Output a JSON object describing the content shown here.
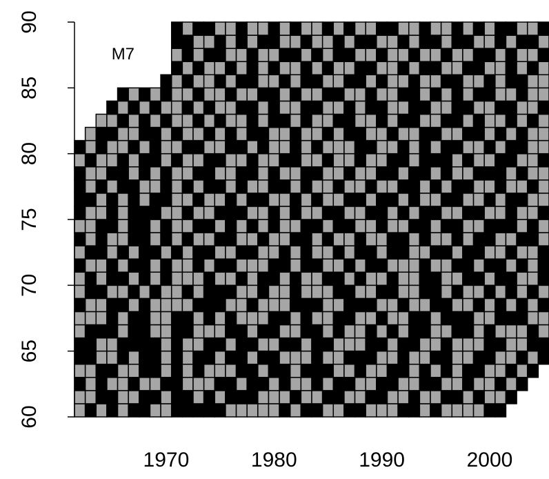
{
  "chart_data": {
    "type": "heatmap",
    "annotation": "M7",
    "annotation_x": 1966,
    "annotation_y": 87.5,
    "colors": {
      "0": "#000000",
      "1": "#a6a6a6"
    },
    "xlim": [
      1961.5,
      2005.5
    ],
    "ylim": [
      60,
      90
    ],
    "xticks": [
      1970,
      1980,
      1990,
      2000
    ],
    "yticks": [
      60,
      65,
      70,
      75,
      80,
      85,
      90
    ],
    "x": [
      1962,
      1963,
      1964,
      1965,
      1966,
      1967,
      1968,
      1969,
      1970,
      1971,
      1972,
      1973,
      1974,
      1975,
      1976,
      1977,
      1978,
      1979,
      1980,
      1981,
      1982,
      1983,
      1984,
      1985,
      1986,
      1987,
      1988,
      1989,
      1990,
      1991,
      1992,
      1993,
      1994,
      1995,
      1996,
      1997,
      1998,
      1999,
      2000,
      2001,
      2002,
      2003,
      2004,
      2005
    ],
    "y": [
      60,
      61,
      62,
      63,
      64,
      65,
      66,
      67,
      68,
      69,
      70,
      71,
      72,
      73,
      74,
      75,
      76,
      77,
      78,
      79,
      80,
      81,
      82,
      83,
      84,
      85,
      86,
      87,
      88,
      89
    ],
    "z": [
      [
        1,
        0,
        1,
        0,
        1,
        0,
        0,
        1,
        1,
        0,
        0,
        0,
        0,
        0,
        1,
        1,
        1,
        1,
        1,
        0,
        1,
        0,
        0,
        1,
        1,
        0,
        0,
        1,
        1,
        1,
        0,
        0,
        1,
        0,
        1,
        1,
        1,
        1,
        0,
        0,
        null,
        null,
        null,
        null
      ],
      [
        1,
        1,
        0,
        0,
        1,
        1,
        0,
        0,
        1,
        0,
        0,
        1,
        0,
        1,
        0,
        0,
        0,
        1,
        1,
        1,
        0,
        1,
        1,
        0,
        0,
        1,
        1,
        0,
        0,
        1,
        1,
        0,
        1,
        1,
        0,
        0,
        1,
        0,
        1,
        1,
        0,
        null,
        null,
        null
      ],
      [
        0,
        1,
        0,
        1,
        1,
        0,
        1,
        1,
        0,
        0,
        1,
        1,
        1,
        0,
        0,
        1,
        0,
        0,
        1,
        0,
        1,
        1,
        0,
        1,
        0,
        0,
        1,
        1,
        0,
        0,
        1,
        1,
        0,
        0,
        1,
        1,
        0,
        1,
        1,
        0,
        1,
        0,
        null,
        null
      ],
      [
        1,
        1,
        0,
        0,
        1,
        1,
        0,
        0,
        1,
        0,
        1,
        0,
        1,
        1,
        1,
        0,
        0,
        1,
        0,
        0,
        1,
        0,
        0,
        0,
        1,
        1,
        0,
        1,
        1,
        0,
        0,
        1,
        0,
        1,
        0,
        1,
        0,
        0,
        1,
        1,
        0,
        1,
        0,
        null
      ],
      [
        0,
        0,
        1,
        1,
        0,
        1,
        0,
        0,
        1,
        0,
        1,
        0,
        0,
        1,
        0,
        0,
        1,
        0,
        0,
        1,
        1,
        1,
        0,
        1,
        1,
        0,
        0,
        0,
        1,
        1,
        0,
        1,
        1,
        0,
        0,
        1,
        1,
        0,
        0,
        1,
        1,
        0,
        1,
        0
      ],
      [
        0,
        0,
        1,
        1,
        0,
        0,
        0,
        0,
        1,
        0,
        1,
        1,
        0,
        0,
        1,
        0,
        0,
        1,
        1,
        0,
        0,
        1,
        0,
        0,
        1,
        1,
        1,
        0,
        0,
        1,
        0,
        0,
        1,
        1,
        0,
        1,
        1,
        1,
        0,
        0,
        1,
        1,
        0,
        0
      ],
      [
        1,
        0,
        0,
        0,
        1,
        0,
        0,
        1,
        1,
        0,
        0,
        1,
        1,
        1,
        0,
        0,
        1,
        0,
        0,
        1,
        1,
        0,
        0,
        1,
        0,
        1,
        1,
        0,
        1,
        0,
        1,
        0,
        0,
        1,
        1,
        0,
        0,
        1,
        0,
        1,
        1,
        1,
        0,
        1
      ],
      [
        1,
        1,
        1,
        0,
        1,
        0,
        0,
        1,
        1,
        0,
        0,
        1,
        0,
        1,
        0,
        1,
        1,
        1,
        0,
        0,
        1,
        0,
        1,
        1,
        0,
        0,
        1,
        1,
        0,
        1,
        1,
        0,
        0,
        1,
        0,
        0,
        0,
        1,
        1,
        0,
        0,
        0,
        1,
        1
      ],
      [
        0,
        1,
        1,
        0,
        0,
        1,
        0,
        1,
        1,
        1,
        1,
        0,
        0,
        0,
        1,
        1,
        0,
        1,
        1,
        1,
        0,
        0,
        0,
        1,
        1,
        0,
        0,
        0,
        1,
        1,
        0,
        1,
        1,
        0,
        0,
        1,
        1,
        0,
        1,
        0,
        1,
        0,
        1,
        0
      ],
      [
        1,
        0,
        0,
        1,
        1,
        0,
        1,
        0,
        1,
        1,
        0,
        1,
        0,
        0,
        0,
        1,
        1,
        0,
        1,
        1,
        0,
        1,
        1,
        1,
        0,
        0,
        1,
        1,
        0,
        0,
        1,
        1,
        0,
        0,
        1,
        0,
        1,
        1,
        0,
        1,
        0,
        1,
        0,
        1
      ],
      [
        1,
        0,
        1,
        0,
        0,
        1,
        0,
        1,
        0,
        1,
        1,
        1,
        0,
        1,
        1,
        0,
        1,
        0,
        0,
        1,
        0,
        1,
        1,
        0,
        0,
        1,
        0,
        1,
        1,
        0,
        1,
        1,
        0,
        0,
        1,
        1,
        0,
        0,
        1,
        0,
        0,
        1,
        1,
        0
      ],
      [
        0,
        1,
        1,
        0,
        1,
        0,
        0,
        1,
        0,
        1,
        1,
        0,
        1,
        0,
        0,
        1,
        1,
        1,
        0,
        0,
        1,
        0,
        0,
        1,
        1,
        0,
        1,
        0,
        0,
        1,
        1,
        1,
        0,
        1,
        1,
        0,
        0,
        1,
        0,
        0,
        1,
        0,
        1,
        0
      ],
      [
        1,
        0,
        0,
        1,
        0,
        1,
        0,
        0,
        1,
        0,
        1,
        0,
        0,
        1,
        1,
        0,
        0,
        1,
        1,
        0,
        1,
        0,
        1,
        1,
        0,
        1,
        0,
        0,
        1,
        0,
        0,
        1,
        1,
        0,
        0,
        1,
        0,
        0,
        1,
        1,
        0,
        1,
        1,
        0
      ],
      [
        0,
        1,
        0,
        1,
        1,
        0,
        0,
        1,
        0,
        1,
        0,
        1,
        1,
        0,
        0,
        1,
        1,
        0,
        1,
        1,
        0,
        0,
        1,
        0,
        1,
        1,
        0,
        1,
        1,
        0,
        0,
        1,
        0,
        1,
        1,
        0,
        1,
        0,
        0,
        1,
        1,
        0,
        0,
        1
      ],
      [
        1,
        1,
        0,
        0,
        1,
        0,
        0,
        1,
        0,
        1,
        1,
        0,
        0,
        1,
        0,
        1,
        0,
        1,
        0,
        1,
        1,
        0,
        0,
        1,
        0,
        0,
        1,
        1,
        0,
        1,
        1,
        0,
        0,
        1,
        0,
        0,
        1,
        1,
        0,
        0,
        0,
        1,
        0,
        1
      ],
      [
        0,
        1,
        1,
        0,
        1,
        0,
        0,
        0,
        1,
        1,
        0,
        1,
        1,
        0,
        0,
        0,
        1,
        1,
        0,
        1,
        0,
        1,
        1,
        0,
        0,
        1,
        1,
        0,
        0,
        1,
        0,
        1,
        0,
        0,
        1,
        1,
        0,
        0,
        1,
        1,
        0,
        1,
        1,
        0
      ],
      [
        0,
        0,
        1,
        0,
        1,
        0,
        1,
        0,
        0,
        1,
        1,
        0,
        1,
        1,
        0,
        1,
        0,
        0,
        1,
        1,
        0,
        1,
        0,
        1,
        1,
        0,
        0,
        1,
        0,
        0,
        1,
        0,
        1,
        1,
        0,
        0,
        1,
        1,
        0,
        1,
        0,
        0,
        1,
        1
      ],
      [
        0,
        1,
        0,
        1,
        0,
        0,
        1,
        1,
        0,
        1,
        0,
        1,
        0,
        0,
        1,
        0,
        1,
        1,
        0,
        0,
        1,
        0,
        1,
        1,
        0,
        1,
        1,
        0,
        1,
        1,
        0,
        0,
        1,
        0,
        1,
        0,
        0,
        1,
        1,
        0,
        1,
        1,
        0,
        1
      ],
      [
        0,
        1,
        1,
        0,
        0,
        1,
        0,
        1,
        0,
        1,
        1,
        0,
        0,
        1,
        1,
        0,
        0,
        1,
        0,
        1,
        1,
        0,
        0,
        1,
        1,
        0,
        1,
        1,
        0,
        0,
        1,
        0,
        0,
        1,
        0,
        1,
        1,
        0,
        0,
        0,
        1,
        0,
        1,
        1
      ],
      [
        1,
        0,
        1,
        1,
        0,
        1,
        0,
        0,
        1,
        0,
        1,
        1,
        0,
        0,
        1,
        1,
        0,
        1,
        1,
        0,
        0,
        1,
        1,
        0,
        1,
        1,
        0,
        1,
        1,
        0,
        0,
        1,
        0,
        0,
        0,
        1,
        0,
        1,
        1,
        0,
        0,
        1,
        1,
        0
      ],
      [
        0,
        1,
        0,
        1,
        1,
        0,
        1,
        0,
        1,
        1,
        0,
        0,
        1,
        1,
        0,
        0,
        1,
        0,
        1,
        1,
        0,
        1,
        0,
        1,
        1,
        1,
        0,
        0,
        1,
        1,
        0,
        1,
        0,
        1,
        0,
        0,
        1,
        1,
        0,
        1,
        0,
        0,
        1,
        1
      ],
      [
        null,
        1,
        0,
        0,
        1,
        1,
        0,
        0,
        1,
        0,
        1,
        1,
        0,
        1,
        0,
        1,
        0,
        0,
        1,
        1,
        0,
        1,
        1,
        0,
        1,
        0,
        0,
        1,
        1,
        0,
        1,
        1,
        0,
        0,
        1,
        1,
        0,
        0,
        1,
        0,
        1,
        0,
        1,
        1
      ],
      [
        null,
        null,
        1,
        1,
        0,
        1,
        0,
        1,
        0,
        1,
        1,
        0,
        1,
        0,
        1,
        1,
        0,
        1,
        0,
        0,
        1,
        0,
        1,
        1,
        0,
        0,
        1,
        1,
        0,
        1,
        0,
        0,
        1,
        1,
        0,
        0,
        1,
        0,
        1,
        1,
        0,
        1,
        0,
        1
      ],
      [
        null,
        null,
        null,
        0,
        1,
        0,
        1,
        0,
        1,
        1,
        0,
        1,
        0,
        1,
        1,
        0,
        0,
        1,
        0,
        1,
        1,
        0,
        0,
        1,
        1,
        0,
        1,
        0,
        0,
        1,
        1,
        0,
        0,
        1,
        1,
        0,
        0,
        1,
        1,
        0,
        0,
        1,
        1,
        0
      ],
      [
        null,
        null,
        null,
        null,
        0,
        1,
        0,
        1,
        0,
        1,
        1,
        0,
        1,
        1,
        0,
        1,
        1,
        0,
        0,
        1,
        0,
        1,
        1,
        0,
        0,
        1,
        1,
        0,
        1,
        1,
        0,
        0,
        1,
        0,
        1,
        0,
        1,
        0,
        0,
        1,
        1,
        0,
        1,
        1
      ],
      [
        null,
        null,
        null,
        null,
        null,
        null,
        null,
        null,
        0,
        1,
        0,
        1,
        1,
        0,
        1,
        0,
        0,
        1,
        1,
        0,
        1,
        0,
        0,
        1,
        1,
        0,
        0,
        1,
        0,
        1,
        1,
        0,
        1,
        1,
        0,
        0,
        1,
        1,
        0,
        1,
        0,
        0,
        1,
        1
      ],
      [
        null,
        null,
        null,
        null,
        null,
        null,
        null,
        null,
        null,
        0,
        1,
        0,
        1,
        1,
        0,
        1,
        0,
        1,
        0,
        1,
        1,
        0,
        1,
        0,
        1,
        1,
        0,
        0,
        1,
        1,
        0,
        1,
        0,
        0,
        1,
        1,
        0,
        0,
        1,
        1,
        0,
        1,
        0,
        1
      ],
      [
        null,
        null,
        null,
        null,
        null,
        null,
        null,
        null,
        null,
        1,
        0,
        1,
        0,
        0,
        1,
        1,
        0,
        1,
        1,
        0,
        0,
        1,
        0,
        1,
        0,
        0,
        1,
        1,
        0,
        1,
        1,
        0,
        1,
        1,
        0,
        1,
        1,
        0,
        0,
        1,
        0,
        1,
        1,
        0
      ],
      [
        null,
        null,
        null,
        null,
        null,
        null,
        null,
        null,
        null,
        0,
        0,
        1,
        1,
        0,
        1,
        0,
        1,
        0,
        0,
        1,
        1,
        0,
        1,
        1,
        0,
        1,
        0,
        0,
        1,
        1,
        0,
        1,
        0,
        0,
        1,
        0,
        0,
        1,
        1,
        0,
        1,
        0,
        0,
        1
      ],
      [
        null,
        null,
        null,
        null,
        null,
        null,
        null,
        null,
        null,
        0,
        1,
        0,
        0,
        1,
        1,
        0,
        1,
        1,
        0,
        1,
        0,
        1,
        1,
        0,
        1,
        0,
        1,
        1,
        0,
        0,
        1,
        1,
        0,
        1,
        1,
        0,
        1,
        0,
        1,
        0,
        0,
        1,
        1,
        0
      ]
    ]
  }
}
